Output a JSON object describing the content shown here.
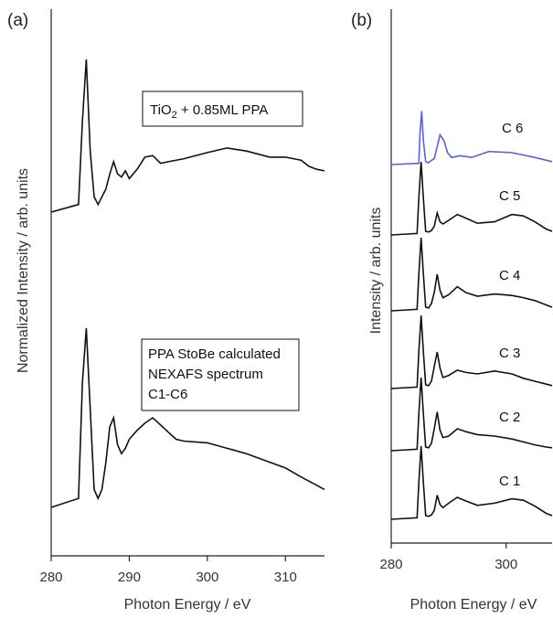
{
  "chart_data": [
    {
      "panel": "(a)",
      "type": "line",
      "xlabel": "Photon Energy / eV",
      "ylabel": "Normalized Intensity  / arb. units",
      "xlim": [
        280,
        315
      ],
      "xticks": [
        280,
        290,
        300,
        310
      ],
      "y_ticks_shown": false,
      "series": [
        {
          "annotation_lines": [
            "TiO",
            "2",
            " + 0.85ML PPA"
          ],
          "color": "#111111",
          "x": [
            280,
            283.5,
            284.0,
            284.5,
            285.0,
            285.5,
            286.0,
            286.5,
            287.0,
            287.5,
            288.0,
            288.5,
            289.0,
            289.5,
            290.0,
            291.0,
            292.0,
            293.0,
            294.0,
            295.0,
            297.0,
            300.0,
            302.5,
            305.0,
            308.0,
            310.0,
            312.0,
            313.0,
            314.0,
            315.0
          ],
          "y": [
            0.0,
            0.05,
            0.6,
            1.0,
            0.4,
            0.1,
            0.05,
            0.1,
            0.15,
            0.25,
            0.33,
            0.25,
            0.23,
            0.27,
            0.22,
            0.28,
            0.36,
            0.37,
            0.32,
            0.33,
            0.35,
            0.39,
            0.42,
            0.4,
            0.36,
            0.36,
            0.34,
            0.3,
            0.28,
            0.27
          ]
        },
        {
          "annotation_lines": [
            "PPA StoBe calculated",
            "NEXAFS spectrum",
            "C1-C6"
          ],
          "color": "#111111",
          "x": [
            280,
            283.5,
            284.0,
            284.5,
            285.0,
            285.5,
            286.0,
            286.5,
            287.0,
            287.5,
            288.0,
            288.5,
            289.0,
            289.5,
            290.0,
            291.0,
            292.0,
            293.0,
            294.0,
            295.0,
            296.0,
            297.0,
            300.0,
            305.0,
            310.0,
            312.0,
            315.0
          ],
          "y": [
            0.0,
            0.05,
            0.7,
            1.0,
            0.55,
            0.1,
            0.05,
            0.1,
            0.25,
            0.45,
            0.5,
            0.35,
            0.3,
            0.33,
            0.38,
            0.43,
            0.47,
            0.5,
            0.46,
            0.42,
            0.38,
            0.37,
            0.36,
            0.3,
            0.22,
            0.17,
            0.1
          ]
        }
      ]
    },
    {
      "panel": "(b)",
      "type": "line",
      "xlabel": "Photon Energy / eV",
      "ylabel": "Intensity / arb. units",
      "xlim": [
        280,
        308
      ],
      "xticks": [
        280,
        300
      ],
      "y_ticks_shown": false,
      "series": [
        {
          "name": "C 6",
          "color": "#5b60e6",
          "x": [
            280,
            284.8,
            285.0,
            285.3,
            285.6,
            286.0,
            286.4,
            287.5,
            288.0,
            288.5,
            289.2,
            289.8,
            290.5,
            292.0,
            294.0,
            297.0,
            301.0,
            305.0,
            308.0
          ],
          "y": [
            0.0,
            0.02,
            0.5,
            0.9,
            0.4,
            0.05,
            0.03,
            0.1,
            0.3,
            0.5,
            0.4,
            0.2,
            0.12,
            0.15,
            0.12,
            0.22,
            0.2,
            0.12,
            0.05
          ]
        },
        {
          "name": "C 5",
          "color": "#111111",
          "x": [
            280,
            284.5,
            284.8,
            285.2,
            285.6,
            286.0,
            286.5,
            287.0,
            287.5,
            288.0,
            288.5,
            289.0,
            290.0,
            291.5,
            293.0,
            295.0,
            298.0,
            301.0,
            303.0,
            305.0,
            307.0,
            308.0
          ],
          "y": [
            0.0,
            0.02,
            0.5,
            1.0,
            0.5,
            0.05,
            0.04,
            0.06,
            0.12,
            0.3,
            0.18,
            0.15,
            0.2,
            0.28,
            0.23,
            0.16,
            0.18,
            0.28,
            0.26,
            0.18,
            0.08,
            0.05
          ]
        },
        {
          "name": "C 4",
          "color": "#111111",
          "x": [
            280,
            284.5,
            284.8,
            285.2,
            285.6,
            286.0,
            286.5,
            287.0,
            287.5,
            288.0,
            288.5,
            289.0,
            290.0,
            291.5,
            293.0,
            295.0,
            298.0,
            301.0,
            303.0,
            305.0,
            307.0,
            308.0
          ],
          "y": [
            0.0,
            0.02,
            0.5,
            1.0,
            0.5,
            0.05,
            0.04,
            0.1,
            0.25,
            0.5,
            0.28,
            0.18,
            0.22,
            0.33,
            0.25,
            0.2,
            0.23,
            0.21,
            0.18,
            0.14,
            0.08,
            0.05
          ]
        },
        {
          "name": "C 3",
          "color": "#111111",
          "x": [
            280,
            284.5,
            284.8,
            285.2,
            285.6,
            286.0,
            286.5,
            287.0,
            287.5,
            288.0,
            288.5,
            289.0,
            290.0,
            291.5,
            293.0,
            295.0,
            298.0,
            301.0,
            303.0,
            305.0,
            307.0,
            308.0
          ],
          "y": [
            0.0,
            0.02,
            0.5,
            1.0,
            0.5,
            0.05,
            0.04,
            0.1,
            0.3,
            0.5,
            0.28,
            0.15,
            0.18,
            0.25,
            0.22,
            0.2,
            0.24,
            0.2,
            0.14,
            0.1,
            0.06,
            0.04
          ]
        },
        {
          "name": "C 2",
          "color": "#111111",
          "x": [
            280,
            284.5,
            284.8,
            285.2,
            285.6,
            286.0,
            286.5,
            287.0,
            287.5,
            288.0,
            288.5,
            289.0,
            290.0,
            291.5,
            293.0,
            295.0,
            298.0,
            301.0,
            303.0,
            305.0,
            307.0,
            308.0
          ],
          "y": [
            0.0,
            0.02,
            0.5,
            1.0,
            0.5,
            0.05,
            0.04,
            0.1,
            0.3,
            0.53,
            0.28,
            0.18,
            0.2,
            0.3,
            0.26,
            0.22,
            0.2,
            0.16,
            0.12,
            0.08,
            0.05,
            0.04
          ]
        },
        {
          "name": "C 1",
          "color": "#111111",
          "x": [
            280,
            284.5,
            284.8,
            285.2,
            285.6,
            286.0,
            286.5,
            287.0,
            287.5,
            288.0,
            288.5,
            289.0,
            290.0,
            291.5,
            293.0,
            295.0,
            298.0,
            301.0,
            303.0,
            305.0,
            307.0,
            308.0
          ],
          "y": [
            0.0,
            0.02,
            0.5,
            1.0,
            0.5,
            0.05,
            0.04,
            0.06,
            0.12,
            0.33,
            0.2,
            0.16,
            0.22,
            0.3,
            0.25,
            0.19,
            0.22,
            0.28,
            0.26,
            0.18,
            0.08,
            0.05
          ]
        }
      ]
    }
  ]
}
